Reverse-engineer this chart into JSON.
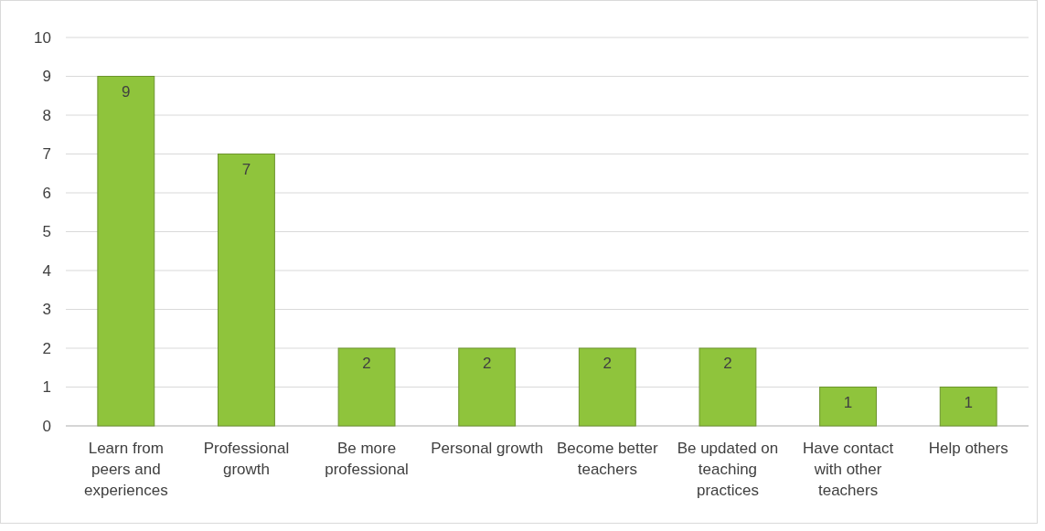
{
  "chart_data": {
    "type": "bar",
    "categories": [
      "Learn from peers and experiences",
      "Professional growth",
      "Be more professional",
      "Personal growth",
      "Become better teachers",
      "Be updated on teaching practices",
      "Have contact with other teachers",
      "Help others"
    ],
    "values": [
      9,
      7,
      2,
      2,
      2,
      2,
      1,
      1
    ],
    "color": "#8fc43c",
    "ylim": [
      0,
      10
    ],
    "yticks": [
      0,
      1,
      2,
      3,
      4,
      5,
      6,
      7,
      8,
      9,
      10
    ],
    "grid": "y",
    "data_labels": true
  }
}
